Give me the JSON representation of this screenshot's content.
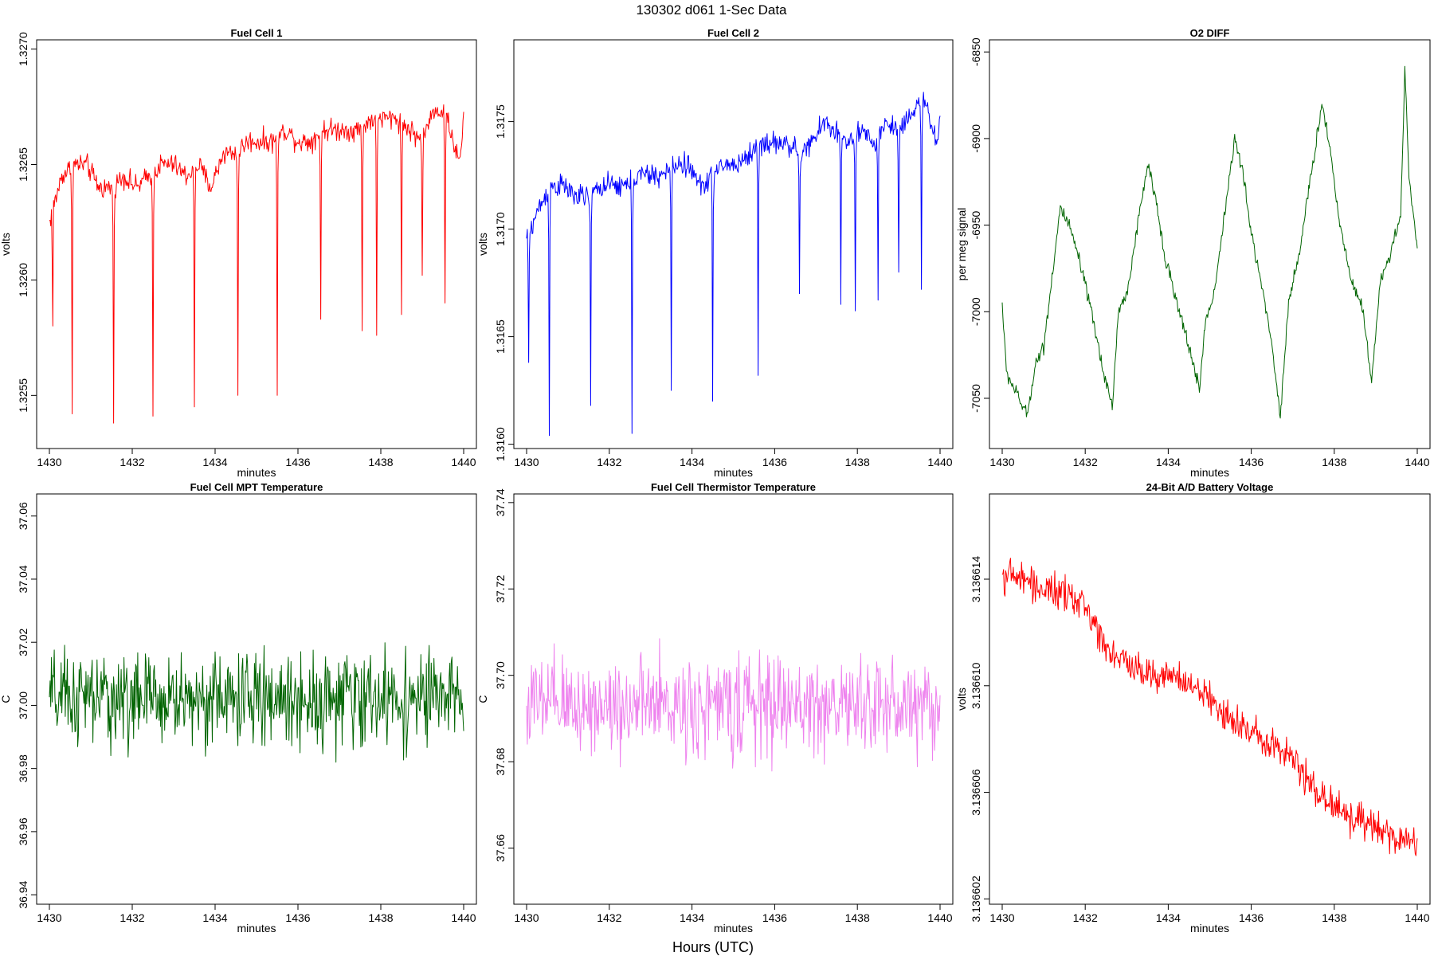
{
  "figure": {
    "title": "130302   d061   1-Sec Data",
    "outer_xlabel": "Hours (UTC)"
  },
  "chart_data": [
    {
      "type": "line",
      "title": "Fuel Cell 1",
      "xlabel": "minutes",
      "ylabel": "volts",
      "color": "#ff0000",
      "xlim": [
        1430,
        1440
      ],
      "ylim": [
        1.32527,
        1.32704
      ],
      "xticks": [
        "1430",
        "1432",
        "1434",
        "1436",
        "1438",
        "1440"
      ],
      "yticks": [
        "1.3255",
        "1.3260",
        "1.3265",
        "1.3270"
      ],
      "x": [
        1430.0,
        1430.3,
        1430.6,
        1430.9,
        1431.2,
        1431.5,
        1431.8,
        1432.1,
        1432.4,
        1432.7,
        1433.0,
        1433.3,
        1433.6,
        1433.9,
        1434.2,
        1434.5,
        1434.8,
        1435.1,
        1435.4,
        1435.7,
        1436.0,
        1436.3,
        1436.6,
        1436.9,
        1437.2,
        1437.5,
        1437.8,
        1438.1,
        1438.4,
        1438.7,
        1439.0,
        1439.3,
        1439.6,
        1439.9,
        1440.0
      ],
      "y": [
        1.32625,
        1.32645,
        1.3265,
        1.3265,
        1.3264,
        1.3264,
        1.32645,
        1.3264,
        1.32645,
        1.3265,
        1.3265,
        1.32645,
        1.3265,
        1.3264,
        1.32655,
        1.32655,
        1.3266,
        1.3266,
        1.3266,
        1.32665,
        1.3266,
        1.3266,
        1.32665,
        1.32665,
        1.32665,
        1.32665,
        1.3267,
        1.3267,
        1.3267,
        1.32665,
        1.3266,
        1.32675,
        1.3267,
        1.3265,
        1.3267
      ],
      "noise": 7e-05,
      "spikes": [
        [
          1430.08,
          1.3257
        ],
        [
          1430.55,
          1.32542
        ],
        [
          1431.55,
          1.32538
        ],
        [
          1432.5,
          1.32541
        ],
        [
          1433.5,
          1.32545
        ],
        [
          1434.55,
          1.3255
        ],
        [
          1435.5,
          1.3255
        ],
        [
          1436.55,
          1.32583
        ],
        [
          1437.55,
          1.32578
        ],
        [
          1437.9,
          1.32576
        ],
        [
          1438.5,
          1.32585
        ],
        [
          1439.0,
          1.32602
        ],
        [
          1439.55,
          1.3259
        ]
      ]
    },
    {
      "type": "line",
      "title": "Fuel Cell 2",
      "xlabel": "minutes",
      "ylabel": "volts",
      "color": "#0000ff",
      "xlim": [
        1430,
        1440
      ],
      "ylim": [
        1.31598,
        1.31788
      ],
      "xticks": [
        "1430",
        "1432",
        "1434",
        "1436",
        "1438",
        "1440"
      ],
      "yticks": [
        "1.3160",
        "1.3165",
        "1.3170",
        "1.3175"
      ],
      "x": [
        1430.0,
        1430.3,
        1430.6,
        1430.9,
        1431.2,
        1431.5,
        1431.8,
        1432.1,
        1432.4,
        1432.7,
        1433.0,
        1433.3,
        1433.6,
        1433.9,
        1434.2,
        1434.5,
        1434.8,
        1435.1,
        1435.4,
        1435.7,
        1436.0,
        1436.3,
        1436.6,
        1436.9,
        1437.2,
        1437.5,
        1437.8,
        1438.1,
        1438.4,
        1438.7,
        1439.0,
        1439.3,
        1439.6,
        1439.9,
        1440.0
      ],
      "y": [
        1.31695,
        1.3171,
        1.3172,
        1.3172,
        1.31715,
        1.31715,
        1.3172,
        1.3172,
        1.3172,
        1.31725,
        1.31725,
        1.31725,
        1.3173,
        1.3173,
        1.3172,
        1.31725,
        1.3173,
        1.3173,
        1.31735,
        1.3174,
        1.3174,
        1.3174,
        1.31735,
        1.3174,
        1.3175,
        1.31745,
        1.3174,
        1.31745,
        1.3174,
        1.3175,
        1.31745,
        1.31755,
        1.3176,
        1.3174,
        1.3175
      ],
      "noise": 8e-05,
      "spikes": [
        [
          1430.05,
          1.31638
        ],
        [
          1430.55,
          1.31604
        ],
        [
          1431.55,
          1.31618
        ],
        [
          1432.55,
          1.31605
        ],
        [
          1433.5,
          1.31625
        ],
        [
          1434.5,
          1.3162
        ],
        [
          1435.6,
          1.31632
        ],
        [
          1436.6,
          1.3167
        ],
        [
          1437.6,
          1.31665
        ],
        [
          1437.95,
          1.31662
        ],
        [
          1438.5,
          1.31667
        ],
        [
          1439.0,
          1.3168
        ],
        [
          1439.55,
          1.31672
        ]
      ]
    },
    {
      "type": "line",
      "title": "O2 DIFF",
      "xlabel": "minutes",
      "ylabel": "per meg signal",
      "color": "#006400",
      "xlim": [
        1430,
        1440
      ],
      "ylim": [
        -7079,
        -6843
      ],
      "xticks": [
        "1430",
        "1432",
        "1434",
        "1436",
        "1438",
        "1440"
      ],
      "yticks": [
        "-7050",
        "-7000",
        "-6950",
        "-6900",
        "-6850"
      ],
      "x": [
        1430.0,
        1430.1,
        1430.3,
        1430.6,
        1430.8,
        1431.0,
        1431.4,
        1431.6,
        1431.8,
        1432.1,
        1432.4,
        1432.65,
        1432.8,
        1433.0,
        1433.5,
        1433.7,
        1433.9,
        1434.2,
        1434.5,
        1434.75,
        1434.9,
        1435.1,
        1435.6,
        1435.8,
        1436.0,
        1436.3,
        1436.5,
        1436.7,
        1436.9,
        1437.2,
        1437.7,
        1437.9,
        1438.1,
        1438.4,
        1438.7,
        1438.9,
        1439.1,
        1439.6,
        1439.7,
        1439.8,
        1440.0
      ],
      "y": [
        -6995,
        -7035,
        -7045,
        -7060,
        -7030,
        -7020,
        -6940,
        -6950,
        -6965,
        -6995,
        -7030,
        -7055,
        -7000,
        -6990,
        -6915,
        -6935,
        -6965,
        -6995,
        -7020,
        -7045,
        -7005,
        -6990,
        -6900,
        -6920,
        -6955,
        -6990,
        -7020,
        -7060,
        -6995,
        -6960,
        -6880,
        -6905,
        -6945,
        -6980,
        -7000,
        -7040,
        -6985,
        -6945,
        -6860,
        -6920,
        -6965
      ],
      "noise": 6
    },
    {
      "type": "line",
      "title": "Fuel Cell MPT Temperature",
      "xlabel": "minutes",
      "ylabel": "C",
      "color": "#006400",
      "xlim": [
        1430,
        1440
      ],
      "ylim": [
        36.937,
        37.067
      ],
      "xticks": [
        "1430",
        "1432",
        "1434",
        "1436",
        "1438",
        "1440"
      ],
      "yticks": [
        "36.94",
        "36.96",
        "36.98",
        "37.00",
        "37.02",
        "37.04",
        "37.06"
      ],
      "x": [
        1430.0,
        1440.0
      ],
      "y": [
        37.002,
        37.002
      ],
      "noise": 0.022
    },
    {
      "type": "line",
      "title": "Fuel Cell Thermistor Temperature",
      "xlabel": "minutes",
      "ylabel": "C",
      "color": "#ee82ee",
      "xlim": [
        1430,
        1440
      ],
      "ylim": [
        37.647,
        37.742
      ],
      "xticks": [
        "1430",
        "1432",
        "1434",
        "1436",
        "1438",
        "1440"
      ],
      "yticks": [
        "37.66",
        "37.68",
        "37.70",
        "37.72",
        "37.74"
      ],
      "x": [
        1430.0,
        1440.0
      ],
      "y": [
        37.693,
        37.693
      ],
      "noise": 0.017
    },
    {
      "type": "line",
      "title": "24-Bit A/D Battery Voltage",
      "xlabel": "minutes",
      "ylabel": "volts",
      "color": "#ff0000",
      "xlim": [
        1430,
        1440
      ],
      "ylim": [
        3.1366018,
        3.1366172
      ],
      "xticks": [
        "1430",
        "1432",
        "1434",
        "1436",
        "1438",
        "1440"
      ],
      "yticks": [
        "3.136602",
        "3.136606",
        "3.136610",
        "3.136614"
      ],
      "x": [
        1430.0,
        1430.5,
        1431.0,
        1431.5,
        1432.0,
        1432.5,
        1433.0,
        1433.5,
        1434.0,
        1434.5,
        1435.0,
        1435.5,
        1436.0,
        1436.5,
        1437.0,
        1437.5,
        1438.0,
        1438.5,
        1439.0,
        1439.5,
        1440.0
      ],
      "y": [
        3.1366142,
        3.136614,
        3.1366136,
        3.1366134,
        3.136613,
        3.1366115,
        3.1366108,
        3.1366105,
        3.1366104,
        3.13661,
        3.1366095,
        3.1366088,
        3.1366082,
        3.136608,
        3.1366072,
        3.1366062,
        3.1366055,
        3.136605,
        3.1366046,
        3.1366042,
        3.1366042
      ],
      "noise": 9.5e-07
    }
  ]
}
